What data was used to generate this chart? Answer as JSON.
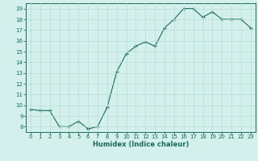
{
  "x": [
    0,
    1,
    2,
    3,
    4,
    5,
    6,
    7,
    8,
    9,
    10,
    11,
    12,
    13,
    14,
    15,
    16,
    17,
    18,
    19,
    20,
    21,
    22,
    23
  ],
  "y": [
    9.6,
    9.5,
    9.5,
    8.0,
    8.0,
    8.5,
    7.8,
    8.0,
    9.8,
    13.1,
    14.8,
    15.5,
    15.9,
    15.5,
    17.2,
    18.0,
    19.0,
    19.0,
    18.2,
    18.7,
    18.0,
    18.0,
    18.0,
    17.2
  ],
  "xlabel": "Humidex (Indice chaleur)",
  "bg_color": "#d4f0ec",
  "grid_color": "#b8ddd8",
  "line_color": "#1a6b5a",
  "marker_color": "#1a6b5a",
  "tick_label_color": "#1a6b5a",
  "xlabel_color": "#1a6b5a",
  "xlim": [
    -0.5,
    23.5
  ],
  "ylim": [
    7.5,
    19.5
  ],
  "yticks": [
    8,
    9,
    10,
    11,
    12,
    13,
    14,
    15,
    16,
    17,
    18,
    19
  ],
  "xticks": [
    0,
    1,
    2,
    3,
    4,
    5,
    6,
    7,
    8,
    9,
    10,
    11,
    12,
    13,
    14,
    15,
    16,
    17,
    18,
    19,
    20,
    21,
    22,
    23
  ],
  "tick_fontsize": 5.0,
  "xlabel_fontsize": 6.0
}
